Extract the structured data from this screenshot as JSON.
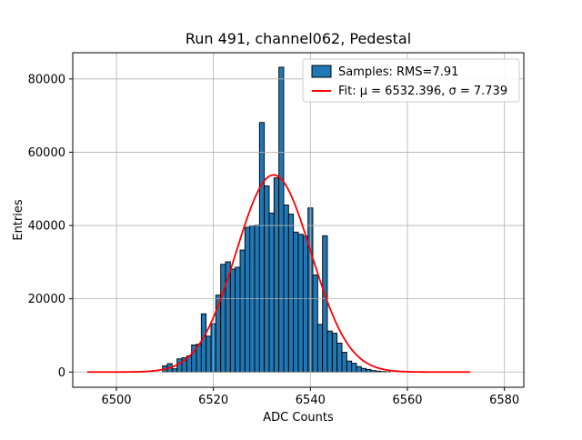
{
  "figure": {
    "title": "Run 491, channel062, Pedestal",
    "xlabel": "ADC Counts",
    "ylabel": "Entries"
  },
  "legend": {
    "samples_label": "Samples: RMS=7.91",
    "fit_label": "Fit: μ = 6532.396, σ = 7.739"
  },
  "chart_data": {
    "type": "bar",
    "title": "Run 491, channel062, Pedestal",
    "xlabel": "ADC Counts",
    "ylabel": "Entries",
    "xlim": [
      6491,
      6584
    ],
    "ylim": [
      -4150,
      87150
    ],
    "xticks": [
      6500,
      6520,
      6540,
      6560,
      6580
    ],
    "yticks": [
      0,
      20000,
      40000,
      60000,
      80000
    ],
    "grid": true,
    "legend_position": "upper right",
    "colors": {
      "bar_fill": "#1f77b4",
      "bar_edge": "#000000",
      "fit_line": "#ff0000",
      "grid": "#b0b0b0",
      "legend_edge": "#cccccc"
    },
    "histogram": {
      "label": "Samples: RMS=7.91",
      "rms": 7.91,
      "first_bin_center": 6510,
      "bin_width": 1,
      "counts": [
        1700,
        2300,
        900,
        3600,
        3900,
        4400,
        7400,
        7600,
        15900,
        9800,
        13200,
        21000,
        29400,
        30100,
        28100,
        28600,
        33300,
        39500,
        39900,
        40100,
        68100,
        50800,
        43400,
        53000,
        83200,
        45600,
        43100,
        38200,
        37600,
        37100,
        44800,
        26500,
        13000,
        37200,
        11200,
        10600,
        7900,
        5400,
        3000,
        2400,
        1500,
        1000,
        700,
        400,
        250,
        150,
        80
      ]
    },
    "fit": {
      "label": "Fit: μ = 6532.396, σ = 7.739",
      "shape": "gaussian",
      "mu": 6532.396,
      "sigma": 7.739,
      "amplitude": 53800,
      "x_range": [
        6494,
        6573
      ]
    }
  }
}
